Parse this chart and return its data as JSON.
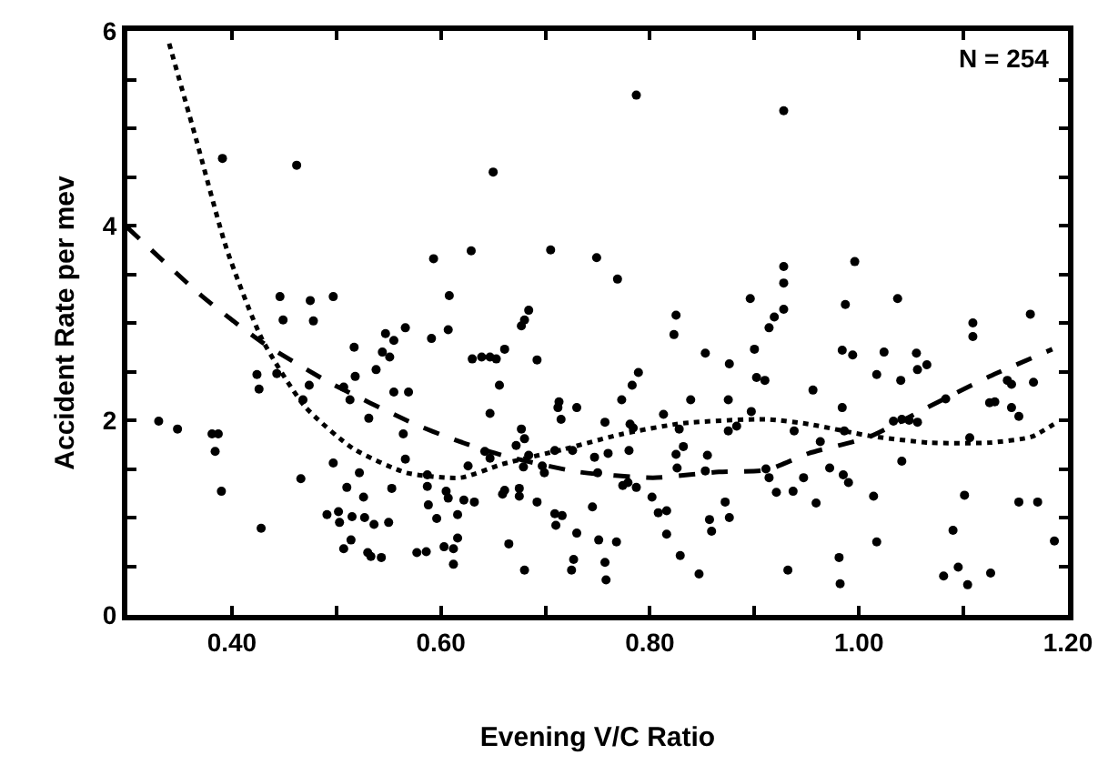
{
  "chart_data": {
    "type": "scatter",
    "xlabel": "Evening V/C Ratio",
    "ylabel": "Accident Rate per mev",
    "annotations": [
      "N = 254"
    ],
    "xlim": [
      0.3,
      1.2
    ],
    "ylim": [
      0,
      6
    ],
    "xticks": [
      {
        "value": 0.4,
        "label": "0.40"
      },
      {
        "value": 0.5,
        "label": null
      },
      {
        "value": 0.6,
        "label": "0.60"
      },
      {
        "value": 0.7,
        "label": null
      },
      {
        "value": 0.8,
        "label": "0.80"
      },
      {
        "value": 0.9,
        "label": null
      },
      {
        "value": 1.0,
        "label": "1.00"
      },
      {
        "value": 1.1,
        "label": null
      },
      {
        "value": 1.2,
        "label": "1.20"
      }
    ],
    "yticks": [
      0,
      {
        "value": 0.5,
        "label": null
      },
      {
        "value": 1,
        "label": null
      },
      {
        "value": 1.5,
        "label": null
      },
      2,
      {
        "value": 2.5,
        "label": null
      },
      {
        "value": 3,
        "label": null
      },
      {
        "value": 3.5,
        "label": null
      },
      4,
      {
        "value": 4.5,
        "label": null
      },
      {
        "value": 5,
        "label": null
      },
      {
        "value": 5.5,
        "label": null
      },
      6
    ],
    "grid": false,
    "series": [
      {
        "marker": "circle",
        "color": "#000000",
        "x": [
          0.33,
          0.391,
          0.462,
          0.348,
          0.381,
          0.387,
          0.384,
          0.39,
          0.428,
          0.466,
          0.446,
          0.475,
          0.497,
          0.449,
          0.478,
          0.424,
          0.426,
          0.443,
          0.474,
          0.468,
          0.507,
          0.513,
          0.518,
          0.517,
          0.531,
          0.538,
          0.544,
          0.551,
          0.547,
          0.555,
          0.566,
          0.555,
          0.569,
          0.564,
          0.566,
          0.591,
          0.593,
          0.608,
          0.607,
          0.497,
          0.522,
          0.51,
          0.526,
          0.491,
          0.502,
          0.503,
          0.515,
          0.527,
          0.536,
          0.55,
          0.514,
          0.507,
          0.53,
          0.533,
          0.543,
          0.553,
          0.587,
          0.587,
          0.605,
          0.607,
          0.588,
          0.596,
          0.616,
          0.577,
          0.586,
          0.603,
          0.612,
          0.612,
          0.616,
          0.787,
          0.65,
          0.629,
          0.705,
          0.749,
          0.769,
          0.684,
          0.68,
          0.677,
          0.661,
          0.63,
          0.639,
          0.647,
          0.653,
          0.692,
          0.656,
          0.647,
          0.713,
          0.712,
          0.715,
          0.73,
          0.757,
          0.773,
          0.783,
          0.789,
          0.781,
          0.784,
          0.813,
          0.825,
          0.823,
          0.839,
          0.853,
          0.876,
          0.875,
          0.896,
          0.9,
          0.902,
          0.897,
          0.883,
          0.875,
          0.828,
          0.832,
          0.825,
          0.826,
          0.855,
          0.853,
          0.642,
          0.647,
          0.626,
          0.677,
          0.68,
          0.672,
          0.684,
          0.679,
          0.697,
          0.699,
          0.709,
          0.726,
          0.747,
          0.75,
          0.76,
          0.78,
          0.622,
          0.632,
          0.661,
          0.659,
          0.675,
          0.675,
          0.692,
          0.665,
          0.68,
          0.709,
          0.716,
          0.71,
          0.73,
          0.727,
          0.725,
          0.745,
          0.751,
          0.757,
          0.758,
          0.768,
          0.774,
          0.779,
          0.787,
          0.802,
          0.808,
          0.816,
          0.816,
          0.829,
          0.847,
          0.857,
          0.859,
          0.872,
          0.876,
          0.928,
          0.928,
          0.928,
          0.928,
          0.919,
          0.914,
          0.91,
          0.956,
          0.938,
          0.963,
          0.984,
          0.986,
          0.996,
          0.987,
          0.984,
          0.994,
          1.017,
          1.024,
          1.037,
          1.04,
          1.055,
          1.056,
          1.065,
          1.033,
          1.041,
          1.048,
          1.056,
          1.083,
          1.109,
          1.109,
          1.125,
          1.13,
          1.142,
          1.146,
          1.164,
          1.167,
          1.146,
          1.153,
          1.106,
          1.041,
          0.911,
          0.914,
          0.921,
          0.937,
          0.947,
          0.959,
          0.972,
          0.985,
          0.99,
          1.014,
          1.017,
          0.932,
          0.981,
          0.982,
          1.101,
          1.09,
          1.081,
          1.095,
          1.104,
          1.126,
          1.153,
          1.171,
          1.187
        ],
        "values": [
          1.99,
          4.69,
          4.62,
          1.91,
          1.86,
          1.86,
          1.68,
          1.27,
          0.89,
          1.4,
          3.27,
          3.23,
          3.27,
          3.03,
          3.02,
          2.47,
          2.32,
          2.48,
          2.36,
          2.21,
          2.34,
          2.21,
          2.45,
          2.75,
          2.02,
          2.52,
          2.7,
          2.65,
          2.89,
          2.82,
          2.95,
          2.29,
          2.29,
          1.86,
          1.6,
          2.84,
          3.66,
          3.28,
          2.93,
          1.56,
          1.46,
          1.31,
          1.21,
          1.03,
          1.06,
          0.95,
          1.01,
          1.0,
          0.93,
          0.95,
          0.77,
          0.68,
          0.64,
          0.6,
          0.59,
          1.3,
          1.44,
          1.32,
          1.27,
          1.2,
          1.13,
          0.99,
          1.03,
          0.64,
          0.65,
          0.7,
          0.68,
          0.52,
          0.79,
          5.34,
          4.55,
          3.74,
          3.75,
          3.67,
          3.45,
          3.13,
          3.03,
          2.97,
          2.73,
          2.63,
          2.65,
          2.65,
          2.63,
          2.62,
          2.36,
          2.07,
          2.19,
          2.13,
          2.01,
          2.13,
          1.98,
          2.21,
          2.36,
          2.49,
          1.96,
          1.92,
          2.06,
          3.08,
          2.88,
          2.21,
          2.69,
          2.58,
          2.21,
          3.25,
          2.73,
          2.44,
          2.09,
          1.94,
          1.89,
          1.91,
          1.73,
          1.65,
          1.51,
          1.64,
          1.48,
          1.68,
          1.61,
          1.53,
          1.91,
          1.81,
          1.74,
          1.64,
          1.52,
          1.53,
          1.46,
          1.69,
          1.69,
          1.62,
          1.46,
          1.66,
          1.69,
          1.18,
          1.16,
          1.28,
          1.24,
          1.3,
          1.22,
          1.16,
          0.73,
          0.46,
          1.04,
          1.02,
          0.92,
          0.84,
          0.57,
          0.46,
          1.11,
          0.77,
          0.54,
          0.36,
          0.75,
          1.33,
          1.36,
          1.31,
          1.21,
          1.05,
          1.07,
          0.83,
          0.61,
          0.42,
          0.98,
          0.86,
          1.16,
          1.0,
          5.18,
          3.58,
          3.41,
          3.14,
          3.06,
          2.95,
          2.41,
          2.31,
          1.89,
          1.78,
          2.13,
          1.89,
          3.63,
          3.19,
          2.72,
          2.67,
          2.47,
          2.7,
          3.25,
          2.41,
          2.69,
          2.52,
          2.57,
          1.99,
          2.01,
          2.0,
          1.98,
          2.22,
          3.0,
          2.86,
          2.18,
          2.19,
          2.41,
          2.37,
          3.09,
          2.39,
          2.13,
          2.04,
          1.82,
          1.58,
          1.5,
          1.41,
          1.26,
          1.27,
          1.41,
          1.15,
          1.51,
          1.44,
          1.36,
          1.22,
          0.75,
          0.46,
          0.59,
          0.32,
          1.23,
          0.87,
          0.4,
          0.49,
          0.31,
          0.43,
          1.16,
          1.16,
          0.76
        ]
      },
      {
        "type": "line",
        "color": "#000000",
        "line_style": "dashed",
        "x": [
          0.3,
          0.372,
          0.429,
          0.493,
          0.573,
          0.613,
          0.659,
          0.731,
          0.803,
          0.866,
          0.912,
          0.952,
          1.01,
          1.067,
          1.125,
          1.185
        ],
        "values": [
          3.98,
          3.27,
          2.8,
          2.39,
          1.97,
          1.8,
          1.64,
          1.47,
          1.41,
          1.47,
          1.49,
          1.66,
          1.83,
          2.14,
          2.45,
          2.73
        ]
      },
      {
        "type": "line",
        "color": "#000000",
        "line_style": "dotted",
        "x": [
          0.34,
          0.366,
          0.395,
          0.429,
          0.47,
          0.516,
          0.567,
          0.619,
          0.659,
          0.717,
          0.774,
          0.832,
          0.912,
          0.952,
          1.01,
          1.067,
          1.125,
          1.165,
          1.191
        ],
        "values": [
          5.87,
          4.88,
          3.76,
          2.83,
          2.14,
          1.71,
          1.46,
          1.41,
          1.55,
          1.7,
          1.86,
          1.97,
          2.01,
          1.96,
          1.84,
          1.77,
          1.77,
          1.83,
          1.99
        ]
      }
    ]
  }
}
